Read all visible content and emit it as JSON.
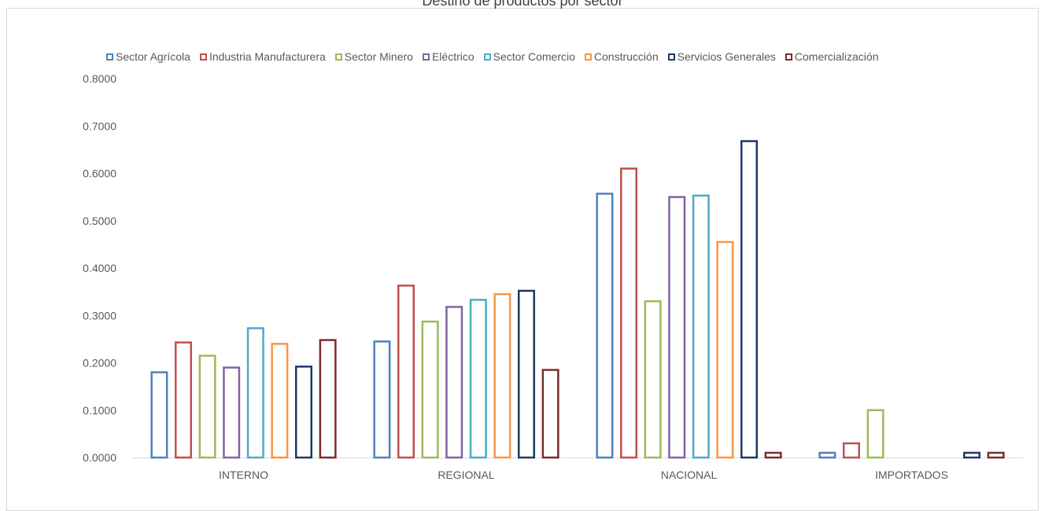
{
  "chart_data": {
    "type": "bar",
    "title": "Destino de productos por sector",
    "categories": [
      "INTERNO",
      "REGIONAL",
      "NACIONAL",
      "IMPORTADOS"
    ],
    "ylim": [
      0,
      0.8
    ],
    "yticks": [
      "0.0000",
      "0.1000",
      "0.2000",
      "0.3000",
      "0.4000",
      "0.5000",
      "0.6000",
      "0.7000",
      "0.8000"
    ],
    "grid": false,
    "legend_position": "top",
    "series": [
      {
        "name": "Sector Agrícola",
        "color": "#4f81bd",
        "values": [
          0.18,
          0.245,
          0.557,
          0.01
        ]
      },
      {
        "name": "Industria Manufacturera",
        "color": "#c0504d",
        "values": [
          0.243,
          0.363,
          0.61,
          0.03
        ]
      },
      {
        "name": "Sector Minero",
        "color": "#9bbb59",
        "values": [
          0.215,
          0.287,
          0.33,
          0.1
        ]
      },
      {
        "name": "Eléctrico",
        "color": "#8064a2",
        "values": [
          0.19,
          0.318,
          0.55,
          null
        ]
      },
      {
        "name": "Sector Comercio",
        "color": "#4bacc6",
        "values": [
          0.273,
          0.333,
          0.553,
          null
        ]
      },
      {
        "name": "Construcción",
        "color": "#f79646",
        "values": [
          0.24,
          0.345,
          0.455,
          null
        ]
      },
      {
        "name": "Servicios Generales",
        "color": "#1f3864",
        "values": [
          0.192,
          0.352,
          0.668,
          0.01
        ]
      },
      {
        "name": "Comercialización",
        "color": "#7b2c2c",
        "values": [
          0.248,
          0.185,
          0.01,
          0.01
        ]
      }
    ]
  }
}
